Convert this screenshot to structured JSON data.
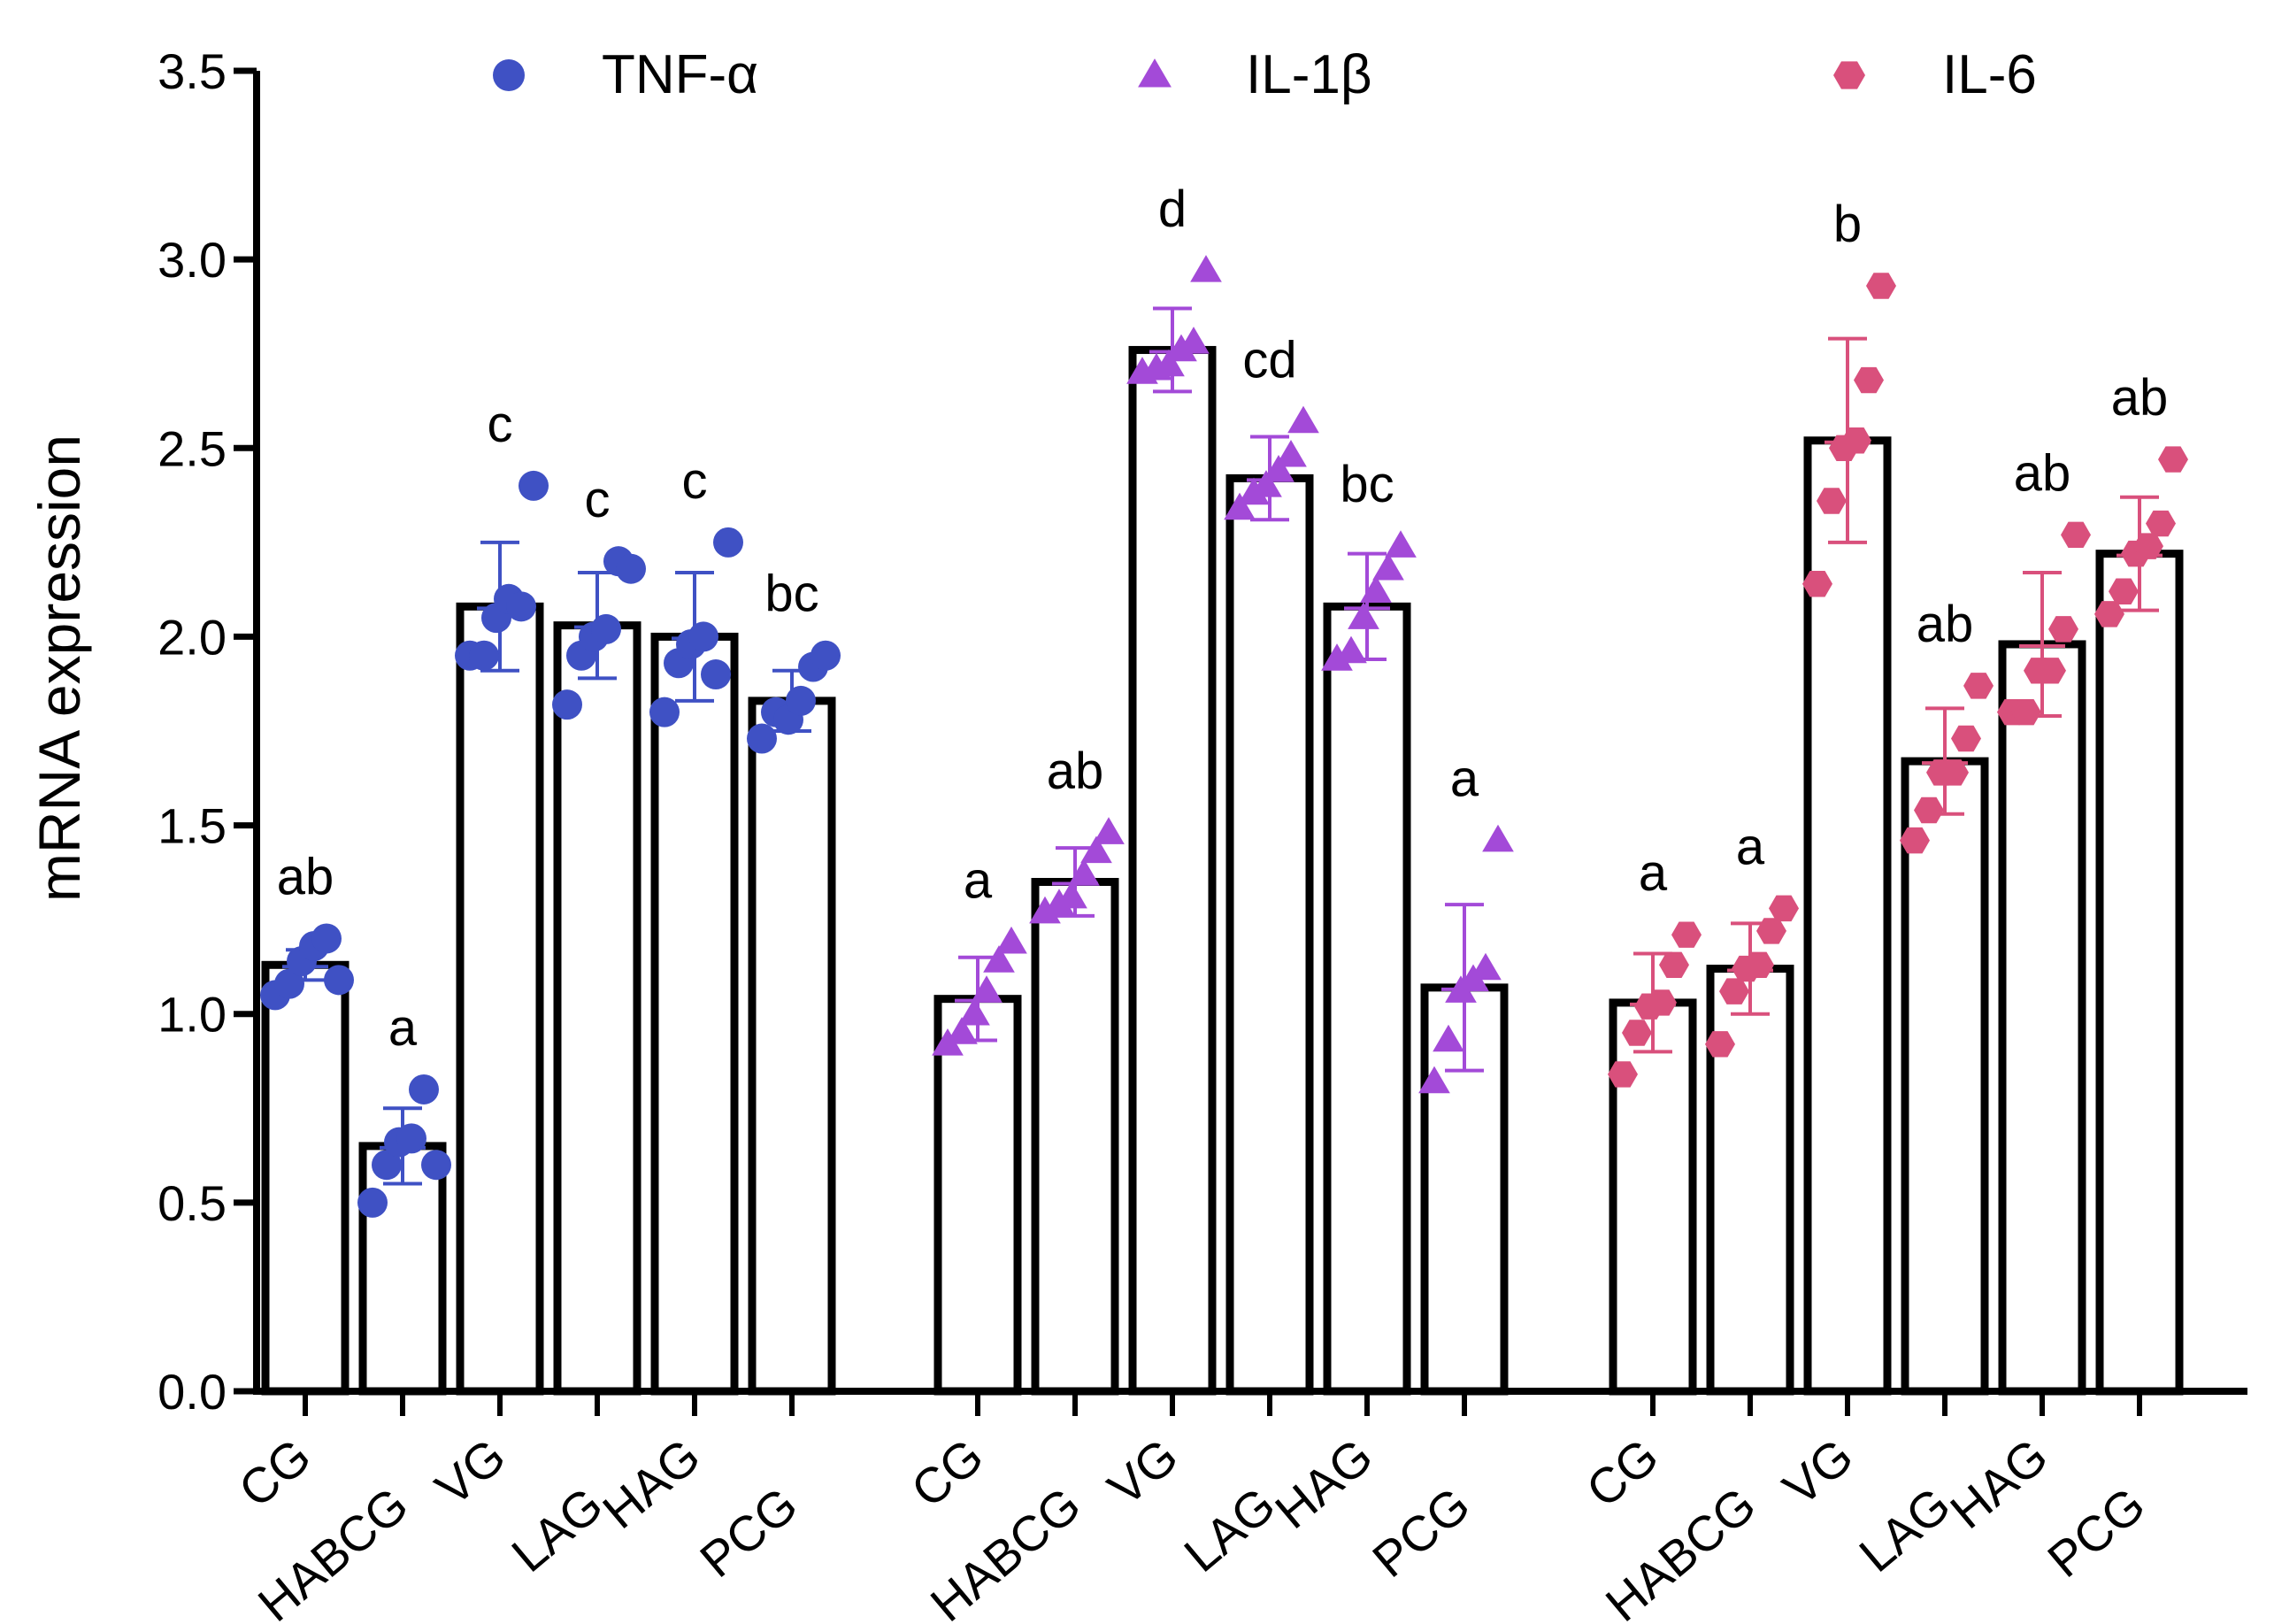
{
  "chart_data": {
    "type": "bar",
    "ylabel": "mRNA expression",
    "xlabel": "",
    "ylim": [
      0,
      3.5
    ],
    "yticks": [
      "0.0",
      "0.5",
      "1.0",
      "1.5",
      "2.0",
      "2.5",
      "3.0",
      "3.5"
    ],
    "grid": false,
    "legend_position": "top",
    "categories": [
      "CG",
      "HABCG",
      "VG",
      "LAG",
      "HAG",
      "PCG"
    ],
    "series": [
      {
        "name": "TNF-α",
        "marker": "circle",
        "color": "#3F51C4",
        "values": [
          1.13,
          0.65,
          2.08,
          2.03,
          2.0,
          1.83
        ],
        "errors": [
          0.04,
          0.1,
          0.17,
          0.14,
          0.17,
          0.08
        ],
        "letters": [
          "ab",
          "a",
          "c",
          "c",
          "c",
          "bc"
        ],
        "points": [
          [
            1.05,
            1.08,
            1.14,
            1.18,
            1.2,
            1.09
          ],
          [
            0.5,
            0.6,
            0.66,
            0.67,
            0.8,
            0.6
          ],
          [
            1.95,
            1.95,
            2.05,
            2.1,
            2.08,
            2.4
          ],
          [
            1.82,
            1.95,
            2.0,
            2.02,
            2.2,
            2.18
          ],
          [
            1.8,
            1.93,
            1.98,
            2.0,
            1.9,
            2.25
          ],
          [
            1.73,
            1.8,
            1.78,
            1.83,
            1.92,
            1.95
          ]
        ]
      },
      {
        "name": "IL-1β",
        "marker": "triangle",
        "color": "#A34AD8",
        "values": [
          1.04,
          1.35,
          2.76,
          2.42,
          2.08,
          1.07
        ],
        "errors": [
          0.11,
          0.09,
          0.11,
          0.11,
          0.14,
          0.22
        ],
        "letters": [
          "a",
          "ab",
          "d",
          "cd",
          "bc",
          "a"
        ],
        "points": [
          [
            0.92,
            0.95,
            1.0,
            1.06,
            1.14,
            1.19
          ],
          [
            1.27,
            1.29,
            1.31,
            1.37,
            1.43,
            1.48
          ],
          [
            2.7,
            2.71,
            2.72,
            2.76,
            2.78,
            2.97
          ],
          [
            2.34,
            2.38,
            2.4,
            2.44,
            2.48,
            2.57
          ],
          [
            1.94,
            1.96,
            2.05,
            2.12,
            2.18,
            2.24
          ],
          [
            0.82,
            0.93,
            1.06,
            1.09,
            1.12,
            1.46
          ]
        ]
      },
      {
        "name": "IL-6",
        "marker": "hexagon",
        "color": "#D9507C",
        "values": [
          1.03,
          1.12,
          2.52,
          1.67,
          1.98,
          2.22
        ],
        "errors": [
          0.13,
          0.12,
          0.27,
          0.14,
          0.19,
          0.15
        ],
        "letters": [
          "a",
          "a",
          "b",
          "ab",
          "ab",
          "ab"
        ],
        "points": [
          [
            0.84,
            0.95,
            1.02,
            1.03,
            1.13,
            1.21
          ],
          [
            0.92,
            1.06,
            1.12,
            1.13,
            1.22,
            1.28
          ],
          [
            2.14,
            2.36,
            2.5,
            2.52,
            2.68,
            2.93
          ],
          [
            1.46,
            1.54,
            1.64,
            1.64,
            1.73,
            1.87
          ],
          [
            1.8,
            1.8,
            1.91,
            1.91,
            2.02,
            2.27
          ],
          [
            2.06,
            2.12,
            2.22,
            2.24,
            2.3,
            2.47
          ]
        ]
      }
    ]
  }
}
